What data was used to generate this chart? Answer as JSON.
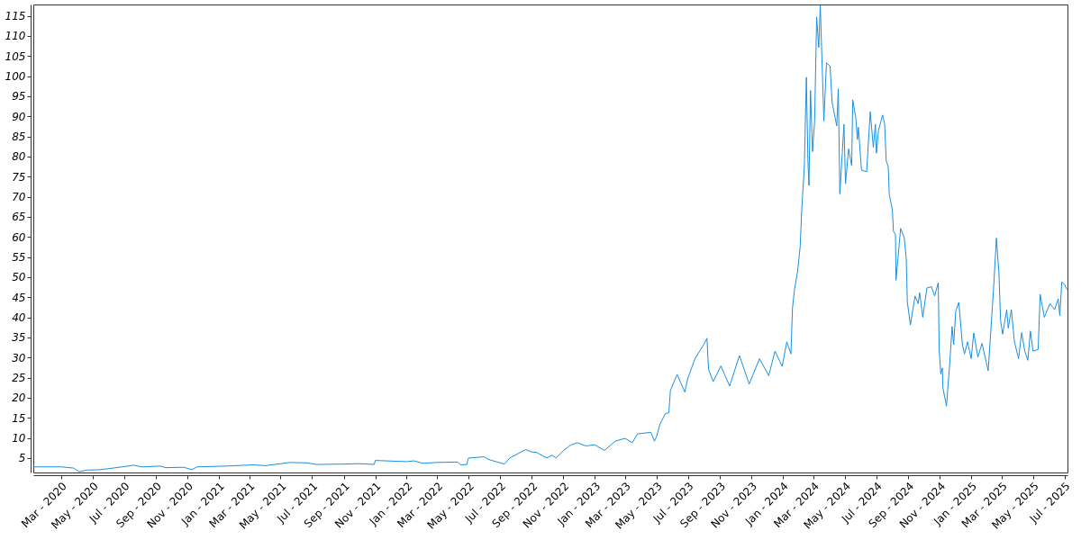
{
  "chart_data": {
    "type": "line",
    "color": "#1a8fe3",
    "grid": false,
    "marker": "none",
    "line_style": "solid",
    "xlim": [
      "2020-01-07",
      "2025-07-07"
    ],
    "ylim": [
      1.4,
      117.8
    ],
    "yticks": [
      5,
      10,
      15,
      20,
      25,
      30,
      35,
      40,
      45,
      50,
      55,
      60,
      65,
      70,
      75,
      80,
      85,
      90,
      95,
      100,
      105,
      110,
      115
    ],
    "xticks": [
      {
        "value": "2020-03-01",
        "label": "Mar - 2020"
      },
      {
        "value": "2020-05-01",
        "label": "May - 2020"
      },
      {
        "value": "2020-07-01",
        "label": "Jul - 2020"
      },
      {
        "value": "2020-09-01",
        "label": "Sep - 2020"
      },
      {
        "value": "2020-11-01",
        "label": "Nov - 2020"
      },
      {
        "value": "2021-01-01",
        "label": "Jan - 2021"
      },
      {
        "value": "2021-03-01",
        "label": "Mar - 2021"
      },
      {
        "value": "2021-05-01",
        "label": "May - 2021"
      },
      {
        "value": "2021-07-01",
        "label": "Jul - 2021"
      },
      {
        "value": "2021-09-01",
        "label": "Sep - 2021"
      },
      {
        "value": "2021-11-01",
        "label": "Nov - 2021"
      },
      {
        "value": "2022-01-01",
        "label": "Jan - 2022"
      },
      {
        "value": "2022-03-01",
        "label": "Mar - 2022"
      },
      {
        "value": "2022-05-01",
        "label": "May - 2022"
      },
      {
        "value": "2022-07-01",
        "label": "Jul - 2022"
      },
      {
        "value": "2022-09-01",
        "label": "Sep - 2022"
      },
      {
        "value": "2022-11-01",
        "label": "Nov - 2022"
      },
      {
        "value": "2023-01-01",
        "label": "Jan - 2023"
      },
      {
        "value": "2023-03-01",
        "label": "Mar - 2023"
      },
      {
        "value": "2023-05-01",
        "label": "May - 2023"
      },
      {
        "value": "2023-07-01",
        "label": "Jul - 2023"
      },
      {
        "value": "2023-09-01",
        "label": "Sep - 2023"
      },
      {
        "value": "2023-11-01",
        "label": "Nov - 2023"
      },
      {
        "value": "2024-01-01",
        "label": "Jan - 2024"
      },
      {
        "value": "2024-03-01",
        "label": "Mar - 2024"
      },
      {
        "value": "2024-05-01",
        "label": "May - 2024"
      },
      {
        "value": "2024-07-01",
        "label": "Jul - 2024"
      },
      {
        "value": "2024-09-01",
        "label": "Sep - 2024"
      },
      {
        "value": "2024-11-01",
        "label": "Nov - 2024"
      },
      {
        "value": "2025-01-01",
        "label": "Jan - 2025"
      },
      {
        "value": "2025-03-01",
        "label": "Mar - 2025"
      },
      {
        "value": "2025-05-01",
        "label": "May - 2025"
      },
      {
        "value": "2025-07-01",
        "label": "Jul - 2025"
      }
    ],
    "x": [
      "2020-01-07",
      "2020-03-01",
      "2020-03-25",
      "2020-04-05",
      "2020-04-20",
      "2020-05-15",
      "2020-06-10",
      "2020-07-20",
      "2020-08-05",
      "2020-09-10",
      "2020-09-20",
      "2020-10-25",
      "2020-11-10",
      "2020-11-20",
      "2021-01-15",
      "2021-03-10",
      "2021-04-01",
      "2021-05-20",
      "2021-06-20",
      "2021-07-10",
      "2021-09-01",
      "2021-10-01",
      "2021-10-30",
      "2021-11-01",
      "2022-01-01",
      "2022-01-15",
      "2022-02-01",
      "2022-03-01",
      "2022-04-10",
      "2022-04-15",
      "2022-04-28",
      "2022-04-29",
      "2022-05-01",
      "2022-05-31",
      "2022-06-10",
      "2022-07-01",
      "2022-07-10",
      "2022-07-20",
      "2022-08-20",
      "2022-09-01",
      "2022-09-10",
      "2022-09-30",
      "2022-10-10",
      "2022-10-18",
      "2022-11-01",
      "2022-11-15",
      "2022-11-28",
      "2022-12-15",
      "2023-01-01",
      "2023-01-20",
      "2023-02-10",
      "2023-03-01",
      "2023-03-15",
      "2023-03-25",
      "2023-04-20",
      "2023-04-27",
      "2023-05-01",
      "2023-05-08",
      "2023-05-18",
      "2023-05-25",
      "2023-05-28",
      "2023-06-10",
      "2023-06-25",
      "2023-07-01",
      "2023-07-15",
      "2023-08-01",
      "2023-08-07",
      "2023-08-10",
      "2023-08-19",
      "2023-09-03",
      "2023-09-20",
      "2023-10-09",
      "2023-10-28",
      "2023-11-17",
      "2023-12-05",
      "2023-12-17",
      "2023-12-31",
      "2024-01-09",
      "2024-01-17",
      "2024-01-20",
      "2024-01-24",
      "2024-01-30",
      "2024-02-04",
      "2024-02-07",
      "2024-02-12",
      "2024-02-16",
      "2024-02-19",
      "2024-02-21",
      "2024-02-24",
      "2024-02-28",
      "2024-03-03",
      "2024-03-07",
      "2024-03-11",
      "2024-03-14",
      "2024-03-21",
      "2024-03-26",
      "2024-04-02",
      "2024-04-06",
      "2024-04-15",
      "2024-04-18",
      "2024-04-21",
      "2024-04-29",
      "2024-05-02",
      "2024-05-08",
      "2024-05-14",
      "2024-05-16",
      "2024-05-22",
      "2024-05-25",
      "2024-05-27",
      "2024-06-02",
      "2024-06-12",
      "2024-06-19",
      "2024-06-25",
      "2024-06-29",
      "2024-07-01",
      "2024-07-05",
      "2024-07-13",
      "2024-07-17",
      "2024-07-20",
      "2024-07-24",
      "2024-07-26",
      "2024-08-01",
      "2024-08-03",
      "2024-08-07",
      "2024-08-08",
      "2024-08-17",
      "2024-08-24",
      "2024-08-28",
      "2024-08-30",
      "2024-09-05",
      "2024-09-14",
      "2024-09-20",
      "2024-09-23",
      "2024-09-29",
      "2024-10-07",
      "2024-10-16",
      "2024-10-22",
      "2024-10-29",
      "2024-10-31",
      "2024-11-03",
      "2024-11-06",
      "2024-11-07",
      "2024-11-14",
      "2024-11-20",
      "2024-11-25",
      "2024-11-28",
      "2024-12-02",
      "2024-12-08",
      "2024-12-15",
      "2024-12-19",
      "2024-12-25",
      "2025-01-01",
      "2025-01-06",
      "2025-01-14",
      "2025-01-22",
      "2025-02-03",
      "2025-02-11",
      "2025-02-14",
      "2025-02-19",
      "2025-02-24",
      "2025-02-27",
      "2025-03-03",
      "2025-03-11",
      "2025-03-14",
      "2025-03-20",
      "2025-03-26",
      "2025-04-03",
      "2025-04-09",
      "2025-04-15",
      "2025-04-21",
      "2025-04-26",
      "2025-05-01",
      "2025-05-11",
      "2025-05-15",
      "2025-05-23",
      "2025-06-03",
      "2025-06-12",
      "2025-06-19",
      "2025-06-22",
      "2025-06-26",
      "2025-07-02",
      "2025-07-06"
    ],
    "values": [
      2.8,
      2.8,
      2.5,
      1.6,
      2.0,
      2.1,
      2.5,
      3.2,
      2.8,
      3.0,
      2.6,
      2.7,
      2.1,
      2.8,
      3.0,
      3.3,
      3.1,
      3.9,
      3.8,
      3.4,
      3.5,
      3.6,
      3.4,
      4.4,
      4.1,
      4.3,
      3.7,
      3.9,
      4.0,
      3.3,
      3.4,
      4.2,
      5.0,
      5.3,
      4.6,
      3.8,
      3.5,
      5.0,
      7.1,
      6.5,
      6.4,
      5.0,
      5.7,
      5.0,
      6.8,
      8.2,
      8.8,
      8.0,
      8.3,
      6.9,
      9.2,
      9.9,
      8.8,
      11.0,
      11.4,
      9.2,
      10.3,
      13.5,
      16.0,
      16.3,
      21.8,
      25.8,
      21.4,
      24.9,
      29.8,
      33.3,
      34.8,
      27.1,
      24.0,
      27.9,
      22.9,
      30.5,
      23.4,
      29.7,
      25.5,
      31.6,
      27.8,
      33.9,
      30.9,
      42.3,
      46.9,
      51.5,
      57.6,
      66.8,
      77.3,
      99.7,
      78.9,
      72.8,
      96.4,
      81.2,
      88.8,
      114.7,
      107.1,
      117.6,
      88.8,
      103.3,
      102.5,
      93.4,
      87.6,
      96.8,
      70.7,
      88.0,
      73.2,
      81.9,
      77.7,
      94.1,
      89.6,
      84.2,
      87.3,
      76.6,
      76.2,
      91.1,
      82.3,
      88.0,
      80.8,
      86.5,
      90.3,
      88.0,
      78.9,
      77.4,
      70.5,
      66.7,
      61.4,
      60.6,
      49.2,
      62.1,
      59.8,
      54.5,
      43.8,
      38.1,
      45.3,
      43.4,
      46.1,
      40.0,
      47.3,
      47.6,
      45.3,
      48.6,
      31.6,
      25.9,
      27.4,
      22.5,
      17.9,
      27.8,
      37.7,
      33.2,
      41.5,
      43.7,
      33.2,
      30.9,
      33.9,
      29.7,
      36.1,
      30.1,
      33.5,
      26.7,
      42.3,
      48.4,
      59.7,
      50.7,
      39.3,
      35.8,
      41.9,
      37.3,
      41.9,
      33.9,
      29.7,
      36.2,
      31.6,
      29.3,
      36.6,
      31.6,
      32.0,
      45.7,
      40.0,
      43.4,
      41.9,
      44.6,
      40.4,
      48.8,
      48.0,
      46.9
    ]
  }
}
